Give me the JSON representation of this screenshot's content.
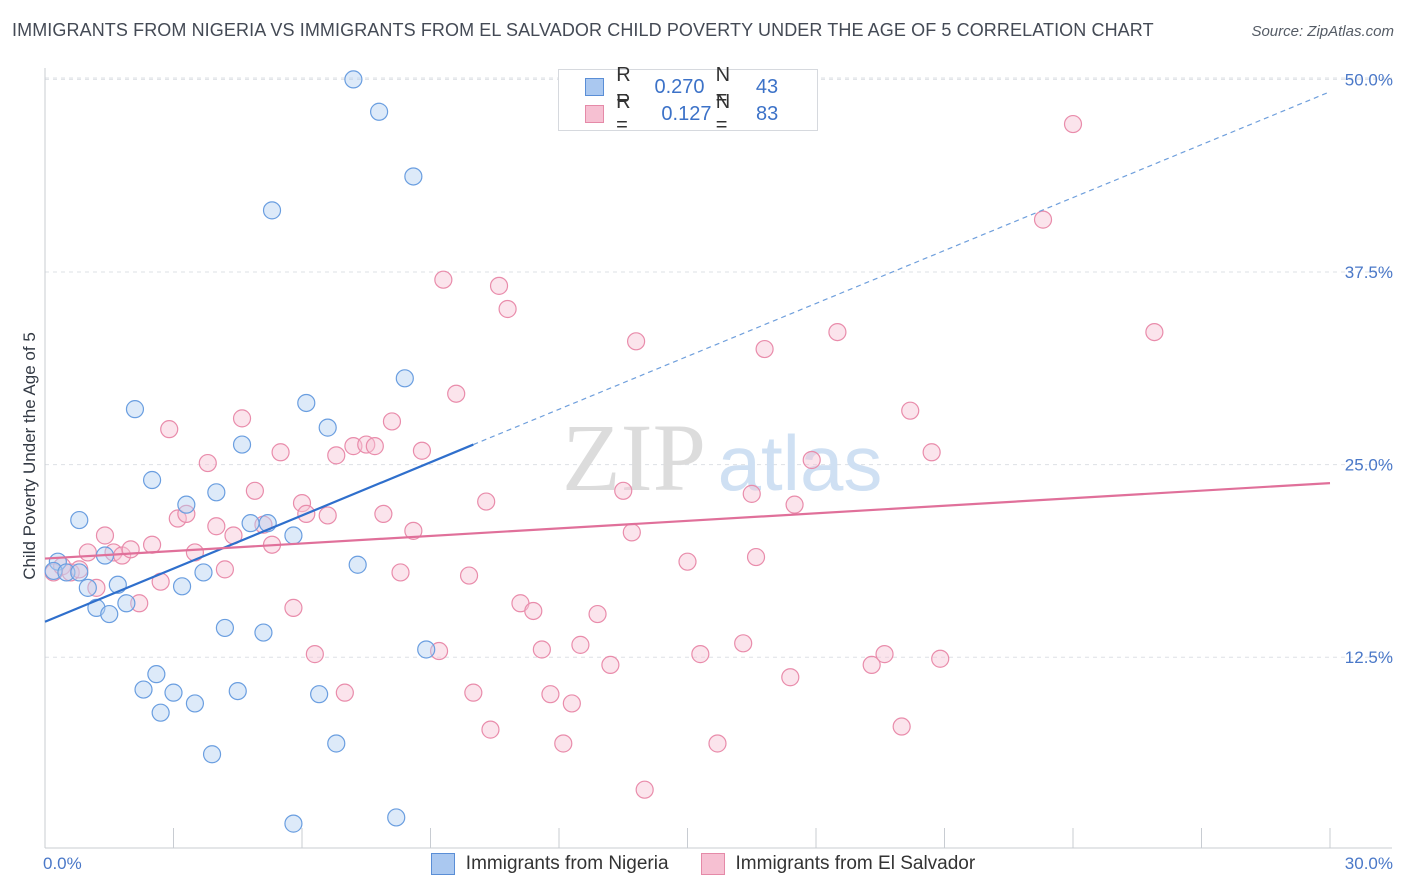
{
  "header": {
    "title": "IMMIGRANTS FROM NIGERIA VS IMMIGRANTS FROM EL SALVADOR CHILD POVERTY UNDER THE AGE OF 5 CORRELATION CHART",
    "source": "Source: ZipAtlas.com"
  },
  "watermark": {
    "zip": "ZIP",
    "atlas": "atlas"
  },
  "legend": {
    "rows": [
      {
        "r_label": "R =",
        "r_value": "0.270",
        "n_label": "N =",
        "n_value": "43",
        "color": "#aac8f0",
        "border": "#5a8ed6"
      },
      {
        "r_label": "R =",
        "r_value": "0.127",
        "n_label": "N =",
        "n_value": "83",
        "color": "#f6c0d2",
        "border": "#e58aa8"
      }
    ]
  },
  "chart_data": {
    "type": "scatter",
    "title": "IMMIGRANTS FROM NIGERIA VS IMMIGRANTS FROM EL SALVADOR CHILD POVERTY UNDER THE AGE OF 5 CORRELATION CHART",
    "xlabel": "",
    "ylabel": "Child Poverty Under the Age of 5",
    "xlim": [
      0,
      30
    ],
    "ylim": [
      0,
      50
    ],
    "x_tick_labels": [
      "0.0%",
      "30.0%"
    ],
    "y_ticks": [
      12.5,
      25.0,
      37.5,
      50.0
    ],
    "y_tick_labels": [
      "12.5%",
      "25.0%",
      "37.5%",
      "50.0%"
    ],
    "grid": true,
    "series": [
      {
        "name": "Immigrants from Nigeria",
        "color": "#6a9ee0",
        "fill": "#b4d0f2",
        "trend": {
          "x0": 0,
          "y0": 14.8,
          "x1": 10,
          "y1": 26.3,
          "dash_to_x": 30,
          "dash_to_y": 49.2,
          "color": "#2f6fcc"
        },
        "points": [
          [
            0.3,
            18.7
          ],
          [
            0.2,
            18.1
          ],
          [
            0.5,
            18.0
          ],
          [
            0.8,
            18.0
          ],
          [
            0.8,
            21.4
          ],
          [
            1.0,
            17.0
          ],
          [
            1.2,
            15.7
          ],
          [
            1.4,
            19.1
          ],
          [
            1.5,
            15.3
          ],
          [
            1.7,
            17.2
          ],
          [
            1.9,
            16.0
          ],
          [
            2.1,
            28.6
          ],
          [
            2.3,
            10.4
          ],
          [
            2.5,
            24.0
          ],
          [
            2.6,
            11.4
          ],
          [
            2.7,
            8.9
          ],
          [
            3.0,
            10.2
          ],
          [
            3.2,
            17.1
          ],
          [
            3.3,
            22.4
          ],
          [
            3.5,
            9.5
          ],
          [
            3.7,
            18.0
          ],
          [
            3.9,
            6.2
          ],
          [
            4.0,
            23.2
          ],
          [
            4.2,
            14.4
          ],
          [
            4.5,
            10.3
          ],
          [
            4.6,
            26.3
          ],
          [
            4.8,
            21.2
          ],
          [
            5.1,
            14.1
          ],
          [
            5.2,
            21.2
          ],
          [
            5.3,
            41.5
          ],
          [
            5.8,
            1.7
          ],
          [
            5.8,
            20.4
          ],
          [
            6.1,
            29.0
          ],
          [
            6.4,
            10.1
          ],
          [
            6.6,
            27.4
          ],
          [
            6.8,
            6.9
          ],
          [
            7.2,
            50.0
          ],
          [
            7.3,
            18.5
          ],
          [
            7.8,
            47.9
          ],
          [
            8.2,
            2.1
          ],
          [
            8.4,
            30.6
          ],
          [
            8.6,
            43.7
          ],
          [
            8.9,
            13.0
          ]
        ]
      },
      {
        "name": "Immigrants from El Salvador",
        "color": "#e98cab",
        "fill": "#f7c3d4",
        "trend": {
          "x0": 0,
          "y0": 18.9,
          "x1": 30,
          "y1": 23.8,
          "color": "#e0709a"
        },
        "points": [
          [
            0.2,
            18.0
          ],
          [
            0.4,
            18.4
          ],
          [
            0.6,
            18.0
          ],
          [
            0.8,
            18.2
          ],
          [
            1.0,
            19.3
          ],
          [
            1.2,
            17.0
          ],
          [
            1.4,
            20.4
          ],
          [
            1.6,
            19.3
          ],
          [
            1.8,
            19.1
          ],
          [
            2.0,
            19.5
          ],
          [
            2.2,
            16.0
          ],
          [
            2.5,
            19.8
          ],
          [
            2.7,
            17.4
          ],
          [
            2.9,
            27.3
          ],
          [
            3.1,
            21.5
          ],
          [
            3.3,
            21.8
          ],
          [
            3.5,
            19.3
          ],
          [
            3.8,
            25.1
          ],
          [
            4.0,
            21.0
          ],
          [
            4.2,
            18.2
          ],
          [
            4.4,
            20.4
          ],
          [
            4.6,
            28.0
          ],
          [
            4.9,
            23.3
          ],
          [
            5.1,
            21.1
          ],
          [
            5.3,
            19.8
          ],
          [
            5.5,
            25.8
          ],
          [
            5.8,
            15.7
          ],
          [
            6.0,
            22.5
          ],
          [
            6.1,
            21.8
          ],
          [
            6.3,
            12.7
          ],
          [
            6.6,
            21.7
          ],
          [
            6.8,
            25.6
          ],
          [
            7.0,
            10.2
          ],
          [
            7.2,
            26.2
          ],
          [
            7.5,
            26.3
          ],
          [
            7.7,
            26.2
          ],
          [
            7.9,
            21.8
          ],
          [
            8.1,
            27.8
          ],
          [
            8.3,
            18.0
          ],
          [
            8.6,
            20.7
          ],
          [
            8.8,
            25.9
          ],
          [
            9.2,
            12.9
          ],
          [
            9.3,
            37.0
          ],
          [
            9.6,
            29.6
          ],
          [
            9.9,
            17.8
          ],
          [
            10.0,
            10.2
          ],
          [
            10.3,
            22.6
          ],
          [
            10.4,
            7.8
          ],
          [
            10.6,
            36.6
          ],
          [
            10.8,
            35.1
          ],
          [
            11.1,
            16.0
          ],
          [
            11.4,
            15.5
          ],
          [
            11.6,
            13.0
          ],
          [
            11.8,
            10.1
          ],
          [
            12.1,
            6.9
          ],
          [
            12.3,
            9.5
          ],
          [
            12.5,
            13.3
          ],
          [
            12.9,
            15.3
          ],
          [
            13.2,
            12.0
          ],
          [
            13.5,
            23.3
          ],
          [
            13.7,
            20.6
          ],
          [
            13.8,
            33.0
          ],
          [
            14.0,
            3.9
          ],
          [
            15.0,
            18.7
          ],
          [
            15.3,
            12.7
          ],
          [
            15.7,
            6.9
          ],
          [
            16.3,
            13.4
          ],
          [
            16.5,
            23.1
          ],
          [
            16.6,
            19.0
          ],
          [
            16.8,
            32.5
          ],
          [
            17.4,
            11.2
          ],
          [
            17.5,
            22.4
          ],
          [
            17.9,
            25.3
          ],
          [
            18.5,
            33.6
          ],
          [
            19.3,
            12.0
          ],
          [
            19.6,
            12.7
          ],
          [
            20.0,
            8.0
          ],
          [
            20.2,
            28.5
          ],
          [
            20.7,
            25.8
          ],
          [
            20.9,
            12.4
          ],
          [
            23.3,
            40.9
          ],
          [
            24.0,
            47.1
          ],
          [
            25.9,
            33.6
          ]
        ]
      }
    ]
  }
}
